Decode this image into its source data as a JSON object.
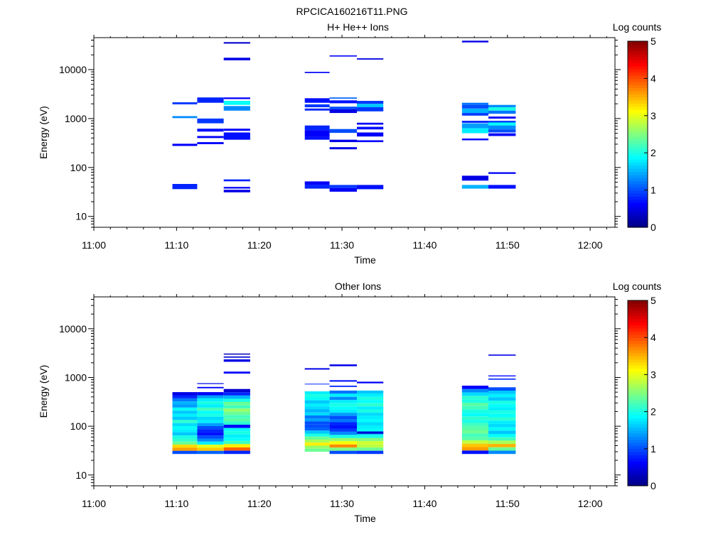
{
  "figure_title": "RPCICA160216T11.PNG",
  "colorbar": {
    "label": "Log counts",
    "ticks": [
      "0",
      "1",
      "2",
      "3",
      "4",
      "5"
    ]
  },
  "chart_data": [
    {
      "type": "heatmap",
      "title": "H+ He++ Ions",
      "xlabel": "Time",
      "ylabel": "Energy (eV)",
      "x_ticks": [
        "11:00",
        "11:10",
        "11:20",
        "11:30",
        "11:40",
        "11:50",
        "12:00"
      ],
      "xlim_minutes": [
        0,
        63
      ],
      "y_scale": "log",
      "y_ticks": [
        "10",
        "100",
        "1000",
        "10000"
      ],
      "ylim": [
        6,
        45000
      ],
      "zlim": [
        0,
        5
      ],
      "colorscale": "jet",
      "cells": [
        [
          9.5,
          12.5,
          1950,
          2150,
          0.9
        ],
        [
          9.5,
          12.5,
          1020,
          1120,
          1.3
        ],
        [
          9.5,
          12.5,
          275,
          305,
          0.6
        ],
        [
          9.5,
          12.5,
          36,
          46,
          0.8
        ],
        [
          12.5,
          15.7,
          2100,
          2700,
          0.8
        ],
        [
          12.5,
          15.7,
          800,
          1000,
          0.9
        ],
        [
          12.5,
          15.7,
          540,
          620,
          0.7
        ],
        [
          12.5,
          15.7,
          400,
          440,
          0.6
        ],
        [
          12.5,
          15.7,
          300,
          330,
          0.6
        ],
        [
          15.7,
          18.9,
          34000,
          36500,
          0.4
        ],
        [
          15.7,
          18.9,
          15500,
          17500,
          0.5
        ],
        [
          15.7,
          18.9,
          2500,
          2700,
          0.6
        ],
        [
          15.7,
          18.9,
          1900,
          2300,
          1.9
        ],
        [
          15.7,
          18.9,
          1450,
          1800,
          1.3
        ],
        [
          15.7,
          18.9,
          560,
          620,
          0.6
        ],
        [
          15.7,
          18.9,
          370,
          520,
          0.7
        ],
        [
          15.7,
          18.9,
          52,
          57,
          0.8
        ],
        [
          15.7,
          18.9,
          37,
          40,
          0.6
        ],
        [
          15.7,
          18.9,
          31,
          35,
          0.5
        ],
        [
          25.5,
          28.5,
          8500,
          9000,
          0.6
        ],
        [
          25.5,
          28.5,
          2100,
          2600,
          0.7
        ],
        [
          25.5,
          28.5,
          1700,
          1950,
          0.9
        ],
        [
          25.5,
          28.5,
          1450,
          1600,
          0.8
        ],
        [
          25.5,
          28.5,
          580,
          720,
          0.8
        ],
        [
          25.5,
          28.5,
          420,
          580,
          0.6
        ],
        [
          25.5,
          28.5,
          370,
          420,
          0.7
        ],
        [
          25.5,
          28.5,
          44,
          52,
          0.6
        ],
        [
          25.5,
          28.5,
          37,
          44,
          0.8
        ],
        [
          28.5,
          31.8,
          18500,
          19500,
          0.6
        ],
        [
          28.5,
          31.8,
          2550,
          2700,
          1.1
        ],
        [
          28.5,
          31.8,
          2050,
          2350,
          0.7
        ],
        [
          28.5,
          31.8,
          1550,
          1750,
          1.0
        ],
        [
          28.5,
          31.8,
          1300,
          1550,
          0.5
        ],
        [
          28.5,
          31.8,
          510,
          610,
          1.0
        ],
        [
          28.5,
          31.8,
          330,
          370,
          0.5
        ],
        [
          28.5,
          31.8,
          235,
          260,
          0.5
        ],
        [
          28.5,
          31.8,
          38,
          44,
          0.9
        ],
        [
          28.5,
          31.8,
          32,
          38,
          0.6
        ],
        [
          31.8,
          35,
          16000,
          17000,
          0.5
        ],
        [
          31.8,
          35,
          2000,
          2300,
          0.9
        ],
        [
          31.8,
          35,
          1700,
          2000,
          1.6
        ],
        [
          31.8,
          35,
          1400,
          1700,
          0.9
        ],
        [
          31.8,
          35,
          750,
          820,
          0.6
        ],
        [
          31.8,
          35,
          600,
          680,
          0.7
        ],
        [
          31.8,
          35,
          430,
          520,
          0.6
        ],
        [
          31.8,
          35,
          330,
          360,
          0.6
        ],
        [
          31.8,
          35,
          36,
          44,
          0.7
        ],
        [
          44.5,
          47.7,
          36000,
          39000,
          0.5
        ],
        [
          44.5,
          47.7,
          1900,
          2100,
          1.2
        ],
        [
          44.5,
          47.7,
          1600,
          1900,
          1.0
        ],
        [
          44.5,
          47.7,
          1300,
          1600,
          1.5
        ],
        [
          44.5,
          47.7,
          1150,
          1300,
          0.9
        ],
        [
          44.5,
          47.7,
          820,
          900,
          0.8
        ],
        [
          44.5,
          47.7,
          630,
          800,
          1.4
        ],
        [
          44.5,
          47.7,
          500,
          630,
          1.8
        ],
        [
          44.5,
          47.7,
          360,
          390,
          0.6
        ],
        [
          44.5,
          47.7,
          54,
          68,
          0.5
        ],
        [
          44.5,
          47.7,
          37,
          44,
          1.5
        ],
        [
          47.7,
          51,
          1700,
          1900,
          1.3
        ],
        [
          47.7,
          51,
          1450,
          1700,
          2.0
        ],
        [
          47.7,
          51,
          1250,
          1450,
          1.2
        ],
        [
          47.7,
          51,
          1000,
          1100,
          0.6
        ],
        [
          47.7,
          51,
          830,
          900,
          0.9
        ],
        [
          47.7,
          51,
          720,
          830,
          1.9
        ],
        [
          47.7,
          51,
          600,
          720,
          1.3
        ],
        [
          47.7,
          51,
          520,
          600,
          1.0
        ],
        [
          47.7,
          51,
          440,
          500,
          0.6
        ],
        [
          47.7,
          51,
          74,
          80,
          0.6
        ],
        [
          47.7,
          51,
          37,
          44,
          0.7
        ]
      ]
    },
    {
      "type": "heatmap",
      "title": "Other Ions",
      "xlabel": "Time",
      "ylabel": "Energy (eV)",
      "x_ticks": [
        "11:00",
        "11:10",
        "11:20",
        "11:30",
        "11:40",
        "11:50",
        "12:00"
      ],
      "xlim_minutes": [
        0,
        63
      ],
      "y_scale": "log",
      "y_ticks": [
        "10",
        "100",
        "1000",
        "10000"
      ],
      "ylim": [
        6,
        45000
      ],
      "zlim": [
        0,
        5
      ],
      "colorscale": "jet",
      "columns": [
        {
          "x": [
            9.5,
            12.5
          ],
          "top": 500,
          "bottom": 27,
          "levels": [
            0.5,
            0.8,
            1.2,
            1.5,
            1.4,
            1.9,
            1.6,
            1.8,
            1.6,
            2.1,
            1.7,
            1.9,
            1.8,
            1.6,
            2.0,
            2.1,
            2.4,
            3.3,
            3.6,
            1.0
          ],
          "extra": []
        },
        {
          "x": [
            12.5,
            15.7
          ],
          "top": 500,
          "bottom": 27,
          "levels": [
            0.6,
            1.4,
            1.8,
            2.0,
            1.8,
            2.2,
            1.9,
            2.0,
            1.7,
            1.8,
            1.4,
            1.0,
            0.8,
            0.7,
            1.0,
            1.3,
            1.8,
            3.0,
            3.4,
            1.1
          ],
          "extra": [
            [
              735,
              765,
              0.5
            ],
            [
              600,
              640,
              0.6
            ]
          ]
        },
        {
          "x": [
            15.7,
            18.9
          ],
          "top": 580,
          "bottom": 27,
          "levels": [
            0.4,
            0.8,
            1.5,
            2.0,
            2.4,
            2.2,
            2.6,
            2.4,
            2.2,
            2.3,
            2.1,
            0.6,
            1.9,
            2.0,
            1.8,
            1.9,
            2.2,
            3.2,
            3.9,
            0.8
          ],
          "extra": [
            [
              2950,
              3100,
              0.3
            ],
            [
              2550,
              2700,
              0.4
            ],
            [
              2100,
              2350,
              0.5
            ],
            [
              1200,
              1320,
              0.6
            ]
          ]
        },
        {
          "x": [
            25.5,
            28.5
          ],
          "top": 520,
          "bottom": 30,
          "levels": [
            1.8,
            2.0,
            1.9,
            1.6,
            1.8,
            1.7,
            1.5,
            1.7,
            1.2,
            1.4,
            1.0,
            1.0,
            1.1,
            1.6,
            2.0,
            2.4,
            2.7,
            3.2,
            2.6,
            2.4
          ],
          "extra": [
            [
              1450,
              1550,
              0.5
            ],
            [
              720,
              745,
              0.8
            ]
          ]
        },
        {
          "x": [
            28.5,
            31.8
          ],
          "top": 540,
          "bottom": 27,
          "levels": [
            1.2,
            1.8,
            1.3,
            1.8,
            2.0,
            1.9,
            1.8,
            1.4,
            1.0,
            1.2,
            0.8,
            0.7,
            0.9,
            1.3,
            2.0,
            2.6,
            3.1,
            3.7,
            2.5,
            1.0
          ],
          "extra": [
            [
              1700,
              1850,
              0.5
            ],
            [
              820,
              880,
              0.7
            ],
            [
              640,
              680,
              0.8
            ]
          ]
        },
        {
          "x": [
            31.8,
            35
          ],
          "top": 540,
          "bottom": 27,
          "levels": [
            1.6,
            1.8,
            2.0,
            1.9,
            2.1,
            1.8,
            2.0,
            1.7,
            1.8,
            1.9,
            1.7,
            1.8,
            1.9,
            1.6,
            2.0,
            2.5,
            2.9,
            2.8,
            2.4,
            0.9
          ],
          "extra": [
            [
              760,
              820,
              0.6
            ],
            [
              70,
              78,
              0.4
            ]
          ]
        },
        {
          "x": [
            44.5,
            47.7
          ],
          "top": 680,
          "bottom": 27,
          "levels": [
            0.6,
            1.3,
            1.7,
            2.1,
            2.0,
            2.3,
            2.2,
            2.0,
            1.9,
            2.1,
            2.0,
            2.2,
            2.3,
            2.4,
            2.2,
            2.3,
            2.8,
            3.4,
            3.6,
            0.7
          ],
          "extra": []
        },
        {
          "x": [
            47.7,
            51
          ],
          "top": 630,
          "bottom": 27,
          "levels": [
            1.0,
            1.6,
            1.8,
            1.6,
            2.0,
            1.9,
            1.8,
            2.0,
            1.9,
            2.1,
            1.8,
            1.7,
            1.9,
            1.6,
            1.9,
            2.2,
            2.7,
            3.5,
            2.4,
            1.3
          ],
          "extra": [
            [
              2800,
              2950,
              0.5
            ],
            [
              1050,
              1100,
              0.7
            ],
            [
              900,
              950,
              0.8
            ]
          ]
        }
      ]
    }
  ]
}
